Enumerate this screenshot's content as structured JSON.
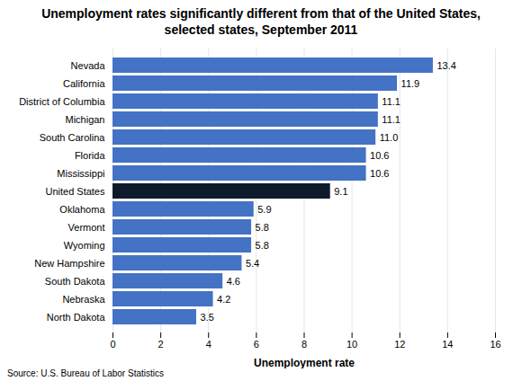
{
  "chart_data": {
    "type": "bar",
    "orientation": "horizontal",
    "title": "Unemployment rates significantly different from that of the United States,\nselected states, September 2011",
    "categories": [
      "North Dakota",
      "Nebraska",
      "South Dakota",
      "New Hampshire",
      "Wyoming",
      "Vermont",
      "Oklahoma",
      "United States",
      "Mississippi",
      "Florida",
      "South Carolina",
      "Michigan",
      "District of Columbia",
      "California",
      "Nevada"
    ],
    "values": [
      3.5,
      4.2,
      4.6,
      5.4,
      5.8,
      5.8,
      5.9,
      9.1,
      10.6,
      10.6,
      11.0,
      11.1,
      11.1,
      11.9,
      13.4
    ],
    "value_labels": [
      "3.5",
      "4.2",
      "4.6",
      "5.4",
      "5.8",
      "5.8",
      "5.9",
      "9.1",
      "10.6",
      "10.6",
      "11.0",
      "11.1",
      "11.1",
      "11.9",
      "13.4"
    ],
    "colors": [
      "#4472C4",
      "#4472C4",
      "#4472C4",
      "#4472C4",
      "#4472C4",
      "#4472C4",
      "#4472C4",
      "#0D1B2A",
      "#4472C4",
      "#4472C4",
      "#4472C4",
      "#4472C4",
      "#4472C4",
      "#4472C4",
      "#4472C4"
    ],
    "xlabel": "Unemployment rate",
    "xlim": [
      0,
      16
    ],
    "xticks": [
      0,
      2,
      4,
      6,
      8,
      10,
      12,
      14,
      16
    ],
    "grid": true,
    "data_labels": true,
    "annotations": [
      "Source: U.S. Bureau of Labor Statistics"
    ]
  }
}
